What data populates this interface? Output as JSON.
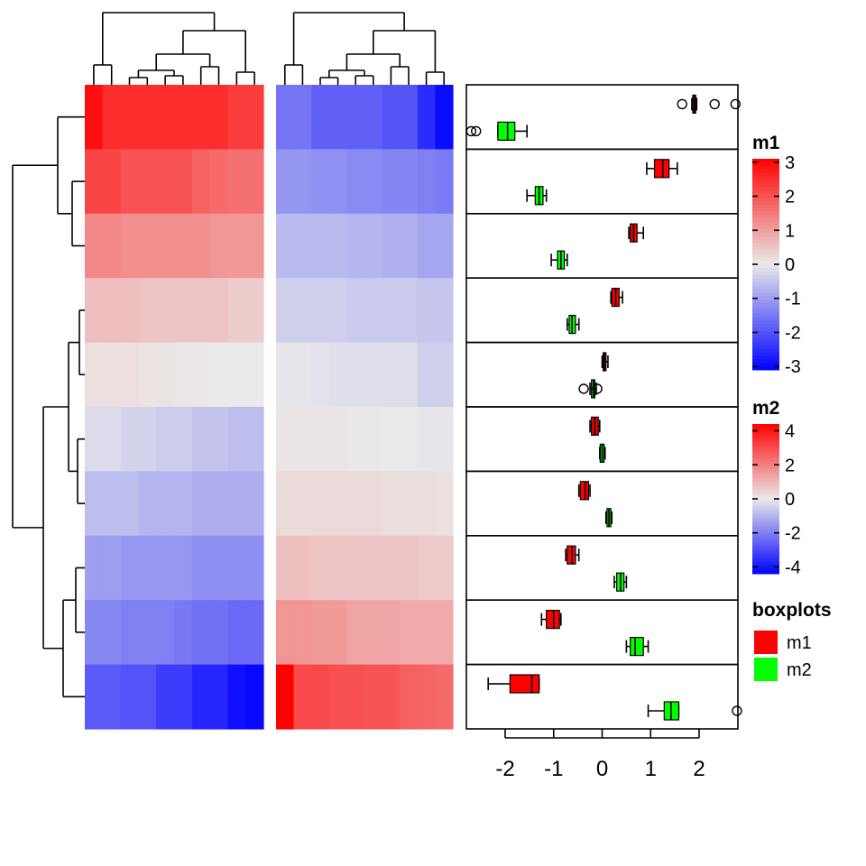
{
  "chart_data": {
    "type": "heatmap",
    "rows": 10,
    "heatmaps": [
      {
        "name": "m1",
        "columns": 10,
        "values": [
          [
            2.9,
            2.5,
            2.5,
            2.5,
            2.5,
            2.5,
            2.5,
            2.5,
            2.3,
            2.3
          ],
          [
            2.2,
            2.2,
            2.0,
            2.0,
            2.0,
            2.0,
            1.8,
            1.7,
            1.6,
            1.6
          ],
          [
            1.3,
            1.3,
            1.2,
            1.2,
            1.2,
            1.2,
            1.2,
            1.1,
            1.1,
            1.1
          ],
          [
            0.6,
            0.6,
            0.6,
            0.5,
            0.5,
            0.5,
            0.5,
            0.5,
            0.4,
            0.4
          ],
          [
            0.15,
            0.15,
            0.15,
            0.1,
            0.1,
            0.05,
            0.05,
            0.0,
            0.0,
            0.0
          ],
          [
            -0.2,
            -0.2,
            -0.3,
            -0.3,
            -0.4,
            -0.4,
            -0.5,
            -0.5,
            -0.6,
            -0.6
          ],
          [
            -0.6,
            -0.6,
            -0.6,
            -0.7,
            -0.7,
            -0.7,
            -0.8,
            -0.8,
            -0.8,
            -0.8
          ],
          [
            -1.0,
            -1.0,
            -1.1,
            -1.1,
            -1.1,
            -1.1,
            -1.2,
            -1.2,
            -1.2,
            -1.2
          ],
          [
            -1.3,
            -1.3,
            -1.4,
            -1.4,
            -1.4,
            -1.5,
            -1.6,
            -1.6,
            -1.7,
            -1.7
          ],
          [
            -1.9,
            -1.9,
            -2.0,
            -2.0,
            -2.3,
            -2.3,
            -2.6,
            -2.6,
            -2.9,
            -3.0
          ]
        ],
        "legend": {
          "title": "m1",
          "ticks": [
            "3",
            "2",
            "1",
            "0",
            "-1",
            "-2",
            "-3"
          ],
          "range": [
            -3.1,
            3.1
          ]
        }
      },
      {
        "name": "m2",
        "columns": 10,
        "values": [
          [
            -2.2,
            -2.2,
            -2.6,
            -2.6,
            -2.6,
            -2.6,
            -2.8,
            -2.8,
            -3.6,
            -4.2
          ],
          [
            -1.6,
            -1.6,
            -1.7,
            -1.7,
            -1.8,
            -1.8,
            -1.9,
            -1.9,
            -2.0,
            -2.1
          ],
          [
            -0.9,
            -0.9,
            -0.9,
            -0.9,
            -1.0,
            -1.0,
            -1.1,
            -1.1,
            -1.3,
            -1.3
          ],
          [
            -0.5,
            -0.5,
            -0.5,
            -0.5,
            -0.6,
            -0.6,
            -0.6,
            -0.6,
            -0.7,
            -0.7
          ],
          [
            -0.1,
            -0.1,
            -0.15,
            -0.2,
            -0.2,
            -0.2,
            -0.25,
            -0.25,
            -0.5,
            -0.5
          ],
          [
            0.1,
            0.1,
            0.1,
            0.1,
            0.05,
            0.05,
            0.0,
            0.0,
            -0.1,
            -0.1
          ],
          [
            0.3,
            0.3,
            0.3,
            0.3,
            0.3,
            0.3,
            0.25,
            0.25,
            0.25,
            0.2
          ],
          [
            0.8,
            0.8,
            0.7,
            0.7,
            0.7,
            0.7,
            0.7,
            0.7,
            0.6,
            0.6
          ],
          [
            1.6,
            1.6,
            1.5,
            1.5,
            1.3,
            1.3,
            1.3,
            1.2,
            1.2,
            1.2
          ],
          [
            4.5,
            3.0,
            3.0,
            2.9,
            2.9,
            2.8,
            2.8,
            2.6,
            2.5,
            2.4
          ]
        ],
        "legend": {
          "title": "m2",
          "ticks": [
            "4",
            "2",
            "0",
            "-2",
            "-4"
          ],
          "range": [
            -4.4,
            4.4
          ]
        }
      }
    ],
    "boxplots": {
      "title": "boxplots",
      "xlim": [
        -2.8,
        2.8
      ],
      "ticks": [
        "-2",
        "-1",
        "0",
        "1",
        "2"
      ],
      "series": [
        {
          "name": "m1",
          "color": "#FF0000",
          "rows": [
            {
              "whisker_low": 1.85,
              "q1": 1.87,
              "median": 1.9,
              "q3": 1.93,
              "whisker_high": 1.95,
              "outliers": [
                1.65,
                2.32,
                2.75
              ]
            },
            {
              "whisker_low": 0.92,
              "q1": 1.08,
              "median": 1.25,
              "q3": 1.38,
              "whisker_high": 1.55,
              "outliers": []
            },
            {
              "whisker_low": 0.55,
              "q1": 0.58,
              "median": 0.65,
              "q3": 0.72,
              "whisker_high": 0.85,
              "outliers": []
            },
            {
              "whisker_low": 0.18,
              "q1": 0.2,
              "median": 0.28,
              "q3": 0.35,
              "whisker_high": 0.42,
              "outliers": []
            },
            {
              "whisker_low": 0.0,
              "q1": 0.02,
              "median": 0.05,
              "q3": 0.08,
              "whisker_high": 0.12,
              "outliers": []
            },
            {
              "whisker_low": -0.25,
              "q1": -0.22,
              "median": -0.15,
              "q3": -0.08,
              "whisker_high": -0.05,
              "outliers": []
            },
            {
              "whisker_low": -0.48,
              "q1": -0.45,
              "median": -0.35,
              "q3": -0.28,
              "whisker_high": -0.25,
              "outliers": []
            },
            {
              "whisker_low": -0.75,
              "q1": -0.72,
              "median": -0.62,
              "q3": -0.55,
              "whisker_high": -0.48,
              "outliers": []
            },
            {
              "whisker_low": -1.25,
              "q1": -1.15,
              "median": -1.0,
              "q3": -0.88,
              "whisker_high": -0.85,
              "outliers": []
            },
            {
              "whisker_low": -2.35,
              "q1": -1.9,
              "median": -1.45,
              "q3": -1.3,
              "whisker_high": -1.3,
              "outliers": []
            }
          ]
        },
        {
          "name": "m2",
          "color": "#00FF00",
          "rows": [
            {
              "whisker_low": -2.15,
              "q1": -2.15,
              "median": -1.95,
              "q3": -1.8,
              "whisker_high": -1.55,
              "outliers": [
                -2.7,
                -2.6
              ]
            },
            {
              "whisker_low": -1.55,
              "q1": -1.38,
              "median": -1.3,
              "q3": -1.22,
              "whisker_high": -1.15,
              "outliers": []
            },
            {
              "whisker_low": -1.05,
              "q1": -0.92,
              "median": -0.85,
              "q3": -0.78,
              "whisker_high": -0.72,
              "outliers": []
            },
            {
              "whisker_low": -0.72,
              "q1": -0.68,
              "median": -0.62,
              "q3": -0.55,
              "whisker_high": -0.48,
              "outliers": []
            },
            {
              "whisker_low": -0.25,
              "q1": -0.22,
              "median": -0.18,
              "q3": -0.15,
              "whisker_high": -0.12,
              "outliers": [
                -0.38,
                -0.1
              ]
            },
            {
              "whisker_low": -0.05,
              "q1": -0.04,
              "median": 0.0,
              "q3": 0.04,
              "whisker_high": 0.06,
              "outliers": []
            },
            {
              "whisker_low": 0.08,
              "q1": 0.1,
              "median": 0.14,
              "q3": 0.18,
              "whisker_high": 0.2,
              "outliers": []
            },
            {
              "whisker_low": 0.25,
              "q1": 0.3,
              "median": 0.38,
              "q3": 0.45,
              "whisker_high": 0.5,
              "outliers": []
            },
            {
              "whisker_low": 0.5,
              "q1": 0.58,
              "median": 0.68,
              "q3": 0.85,
              "whisker_high": 0.95,
              "outliers": []
            },
            {
              "whisker_low": 0.95,
              "q1": 1.28,
              "median": 1.42,
              "q3": 1.58,
              "whisker_high": 1.58,
              "outliers": [
                2.78
              ]
            }
          ]
        }
      ]
    },
    "legends": [
      {
        "title": "m1",
        "kind": "colorbar"
      },
      {
        "title": "m2",
        "kind": "colorbar"
      },
      {
        "title": "boxplots",
        "kind": "categorical",
        "entries": [
          {
            "label": "m1",
            "color": "#FF0000"
          },
          {
            "label": "m2",
            "color": "#00FF00"
          }
        ]
      }
    ],
    "dendrograms": {
      "rows": true,
      "columns_m1": true,
      "columns_m2": true
    }
  }
}
